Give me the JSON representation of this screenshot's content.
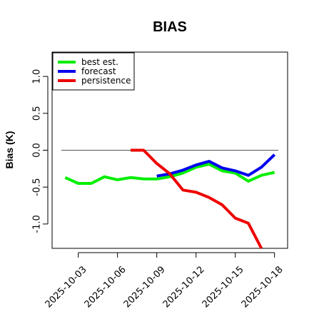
{
  "chart_data": {
    "type": "line",
    "title": "BIAS",
    "xlabel": "",
    "ylabel": "Bias (K)",
    "ylim": [
      -1.33,
      1.33
    ],
    "xlim": [
      "2025-10-01",
      "2025-10-19"
    ],
    "yticks": [
      -1.0,
      -0.5,
      0.0,
      0.5,
      1.0
    ],
    "ytick_labels": [
      "-1.0",
      "-0.5",
      "0.0",
      "0.5",
      "1.0"
    ],
    "xticks": [
      "2025-10-03",
      "2025-10-06",
      "2025-10-09",
      "2025-10-12",
      "2025-10-15",
      "2025-10-18"
    ],
    "xtick_labels": [
      "2025-10-03",
      "2025-10-06",
      "2025-10-09",
      "2025-10-12",
      "2025-10-15",
      "2025-10-18"
    ],
    "highlight_tick": "2025-10-09",
    "highlight_tick_color": "#228B22",
    "reference_line": 0.0,
    "grid": false,
    "legend_position": "top-left",
    "series": [
      {
        "name": "best est.",
        "color": "#00ee00",
        "x": [
          "2025-10-02",
          "2025-10-03",
          "2025-10-04",
          "2025-10-05",
          "2025-10-06",
          "2025-10-07",
          "2025-10-08",
          "2025-10-09",
          "2025-10-10",
          "2025-10-11",
          "2025-10-12",
          "2025-10-13",
          "2025-10-14",
          "2025-10-15",
          "2025-10-16",
          "2025-10-17",
          "2025-10-18"
        ],
        "values": [
          -0.37,
          -0.45,
          -0.45,
          -0.36,
          -0.4,
          -0.37,
          -0.39,
          -0.39,
          -0.36,
          -0.31,
          -0.23,
          -0.19,
          -0.28,
          -0.31,
          -0.42,
          -0.34,
          -0.3
        ]
      },
      {
        "name": "forecast",
        "color": "#0000ee",
        "x": [
          "2025-10-09",
          "2025-10-10",
          "2025-10-11",
          "2025-10-12",
          "2025-10-13",
          "2025-10-14",
          "2025-10-15",
          "2025-10-16",
          "2025-10-17",
          "2025-10-18"
        ],
        "values": [
          -0.35,
          -0.32,
          -0.27,
          -0.2,
          -0.15,
          -0.24,
          -0.28,
          -0.34,
          -0.23,
          -0.06
        ]
      },
      {
        "name": "persistence",
        "color": "#ee0000",
        "x": [
          "2025-10-07",
          "2025-10-08",
          "2025-10-09",
          "2025-10-10",
          "2025-10-11",
          "2025-10-12",
          "2025-10-13",
          "2025-10-14",
          "2025-10-15",
          "2025-10-16",
          "2025-10-17"
        ],
        "values": [
          0.0,
          0.0,
          -0.18,
          -0.32,
          -0.54,
          -0.57,
          -0.64,
          -0.74,
          -0.92,
          -0.99,
          -1.33
        ]
      }
    ]
  }
}
